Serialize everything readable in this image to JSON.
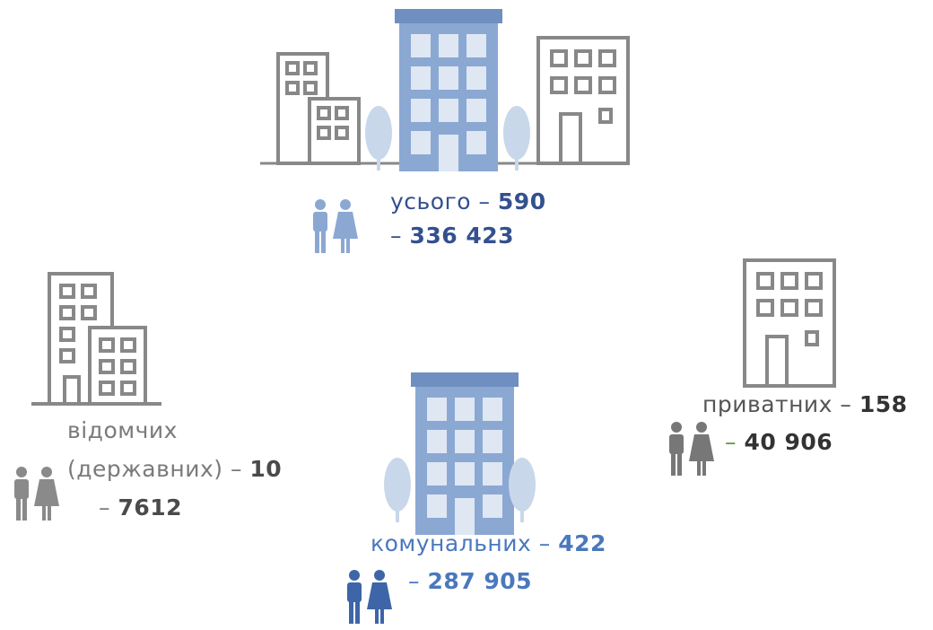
{
  "total": {
    "label": "усього –",
    "count": "590",
    "students_dash": "–",
    "students": "336 423"
  },
  "departmental": {
    "label": "відомчих",
    "label2": "(державних) –",
    "count": "10",
    "students_dash": "–",
    "students": "7612"
  },
  "communal": {
    "label": "комунальних –",
    "count": "422",
    "students_dash": "–",
    "students": "287 905"
  },
  "private": {
    "label": "приватних –",
    "count": "158",
    "students_dash": "–",
    "students": "40 906"
  }
}
